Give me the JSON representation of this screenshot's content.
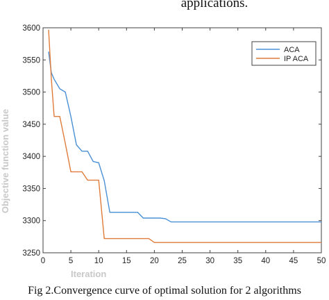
{
  "header_fragment": "applications.",
  "caption": "Fig 2.Convergence curve of optimal solution for 2 algorithms",
  "colors": {
    "aca": "#4a90d6",
    "ip_aca": "#e07b3a",
    "axis": "#404040"
  },
  "chart_data": {
    "type": "line",
    "xlabel": "Iteration",
    "ylabel": "Objective function value",
    "xlim": [
      0,
      50
    ],
    "ylim": [
      3250,
      3600
    ],
    "xticks": [
      0,
      5,
      10,
      15,
      20,
      25,
      30,
      35,
      40,
      45,
      50
    ],
    "yticks": [
      3250,
      3300,
      3350,
      3400,
      3450,
      3500,
      3550,
      3600
    ],
    "grid": false,
    "legend_position": "top-right",
    "series": [
      {
        "name": "ACA",
        "x": [
          1,
          1.5,
          2,
          3,
          4,
          5,
          6,
          7,
          8,
          9,
          10,
          11,
          12,
          13,
          14,
          15,
          16,
          17,
          18,
          19,
          20,
          21,
          22,
          23,
          25,
          30,
          35,
          40,
          45,
          50
        ],
        "y": [
          3563,
          3530,
          3520,
          3505,
          3500,
          3462,
          3418,
          3408,
          3408,
          3392,
          3390,
          3362,
          3313,
          3313,
          3313,
          3313,
          3313,
          3313,
          3304,
          3304,
          3304,
          3304,
          3303,
          3298,
          3298,
          3298,
          3298,
          3298,
          3298,
          3298
        ]
      },
      {
        "name": "IP ACA",
        "x": [
          1,
          1.5,
          2,
          3,
          4,
          5,
          6,
          7,
          8,
          9,
          10,
          11,
          12,
          13,
          14,
          15,
          16,
          17,
          18,
          19,
          20,
          25,
          30,
          35,
          40,
          45,
          50
        ],
        "y": [
          3597,
          3520,
          3462,
          3462,
          3420,
          3376,
          3376,
          3376,
          3363,
          3363,
          3363,
          3272,
          3272,
          3272,
          3272,
          3272,
          3272,
          3272,
          3272,
          3272,
          3266,
          3266,
          3266,
          3266,
          3266,
          3266,
          3266
        ]
      }
    ]
  }
}
